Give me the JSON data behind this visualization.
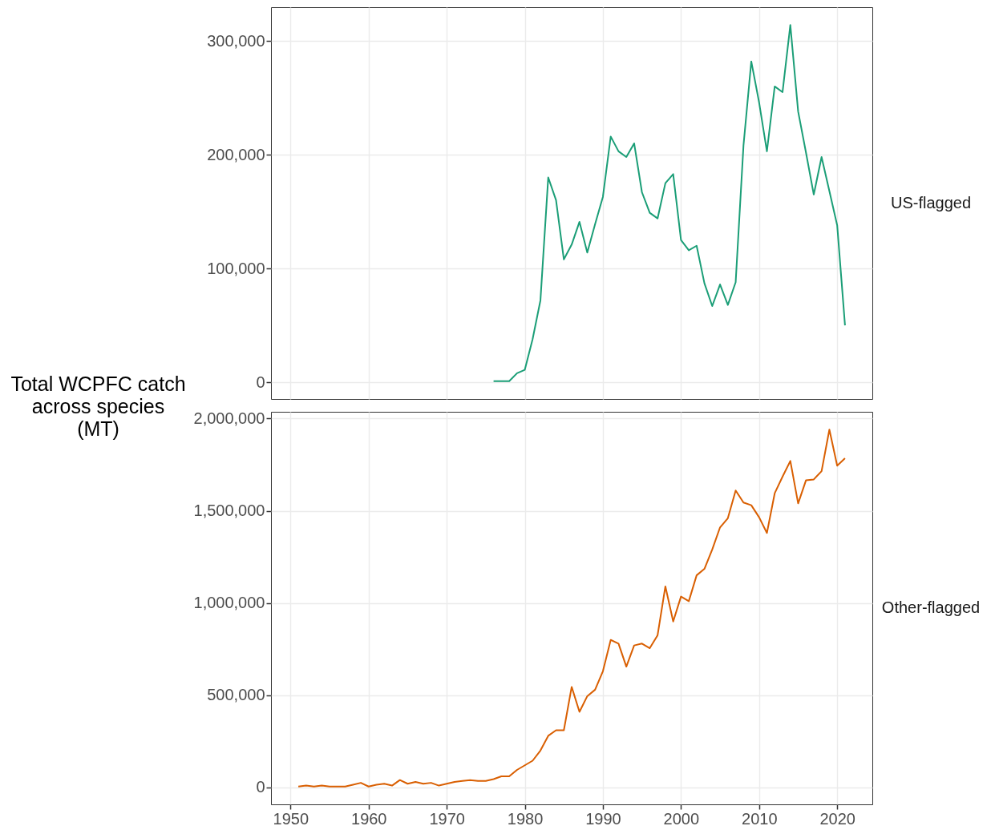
{
  "chart_data": [
    {
      "type": "line",
      "ylabel": "Total WCPFC catch across species (MT)",
      "x": [
        1976,
        1977,
        1978,
        1979,
        1980,
        1981,
        1982,
        1983,
        1984,
        1985,
        1986,
        1987,
        1988,
        1989,
        1990,
        1991,
        1992,
        1993,
        1994,
        1995,
        1996,
        1997,
        1998,
        1999,
        2000,
        2001,
        2002,
        2003,
        2004,
        2005,
        2006,
        2007,
        2008,
        2009,
        2010,
        2011,
        2012,
        2013,
        2014,
        2015,
        2016,
        2017,
        2018,
        2019,
        2020,
        2021
      ],
      "series": [
        {
          "name": "US-flagged",
          "color": "#1b9e77",
          "values": [
            1000,
            1000,
            1000,
            8000,
            11000,
            38000,
            72000,
            180000,
            160000,
            108000,
            121000,
            141000,
            114000,
            139000,
            163000,
            216000,
            203000,
            198000,
            210000,
            167000,
            149000,
            144000,
            175000,
            183000,
            125000,
            116000,
            120000,
            87000,
            67000,
            86000,
            68000,
            88000,
            208000,
            282000,
            246000,
            203000,
            260000,
            255000,
            314000,
            238000,
            202000,
            165000,
            198000,
            168000,
            138000,
            50000
          ]
        }
      ],
      "xlim": [
        1947.5,
        2024.5
      ],
      "ylim": [
        -14650,
        329650
      ],
      "xticks": [
        1950,
        1960,
        1970,
        1980,
        1990,
        2000,
        2010,
        2020
      ],
      "yticks": [
        0,
        {
          "value": 100000,
          "label": "100,000"
        },
        {
          "value": 200000,
          "label": "200,000"
        },
        {
          "value": 300000,
          "label": "300,000"
        }
      ],
      "grid": true,
      "tick_labels": "y"
    },
    {
      "type": "line",
      "x": [
        1951,
        1952,
        1953,
        1954,
        1955,
        1956,
        1957,
        1958,
        1959,
        1960,
        1961,
        1962,
        1963,
        1964,
        1965,
        1966,
        1967,
        1968,
        1969,
        1970,
        1971,
        1972,
        1973,
        1974,
        1975,
        1976,
        1977,
        1978,
        1979,
        1980,
        1981,
        1982,
        1983,
        1984,
        1985,
        1986,
        1987,
        1988,
        1989,
        1990,
        1991,
        1992,
        1993,
        1994,
        1995,
        1996,
        1997,
        1998,
        1999,
        2000,
        2001,
        2002,
        2003,
        2004,
        2005,
        2006,
        2007,
        2008,
        2009,
        2010,
        2011,
        2012,
        2013,
        2014,
        2015,
        2016,
        2017,
        2018,
        2019,
        2020,
        2021
      ],
      "series": [
        {
          "name": "Other-flagged",
          "color": "#d95f02",
          "values": [
            5000,
            10000,
            5000,
            10000,
            5000,
            5000,
            5000,
            15000,
            25000,
            5000,
            15000,
            20000,
            10000,
            40000,
            20000,
            30000,
            20000,
            25000,
            10000,
            20000,
            30000,
            35000,
            40000,
            35000,
            35000,
            45000,
            60000,
            60000,
            95000,
            120000,
            145000,
            200000,
            280000,
            310000,
            310000,
            545000,
            410000,
            495000,
            530000,
            630000,
            800000,
            780000,
            655000,
            770000,
            780000,
            755000,
            825000,
            1090000,
            900000,
            1035000,
            1010000,
            1150000,
            1185000,
            1290000,
            1410000,
            1460000,
            1610000,
            1545000,
            1530000,
            1465000,
            1380000,
            1595000,
            1685000,
            1770000,
            1540000,
            1665000,
            1670000,
            1715000,
            1940000,
            1745000,
            1785000
          ]
        }
      ],
      "xlim": [
        1947.5,
        2024.5
      ],
      "ylim": [
        -91750,
        2036750
      ],
      "xticks": [
        1950,
        1960,
        1970,
        1980,
        1990,
        2000,
        2010,
        2020
      ],
      "yticks": [
        0,
        {
          "value": 500000,
          "label": "500,000"
        },
        {
          "value": 1000000,
          "label": "1,000,000"
        },
        {
          "value": 1500000,
          "label": "1,500,000"
        },
        {
          "value": 2000000,
          "label": "2,000,000"
        }
      ],
      "grid": true
    }
  ]
}
